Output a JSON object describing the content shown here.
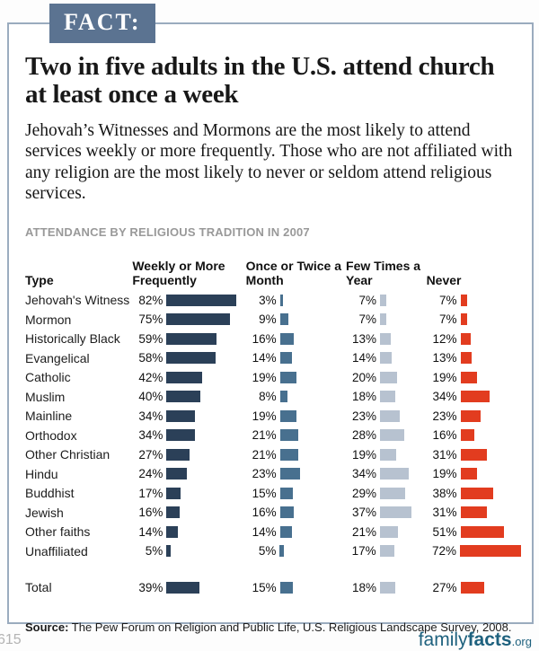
{
  "badge": {
    "label": "FACT:"
  },
  "title": "Two in five adults in the U.S. attend church at least once a week",
  "intro": "Jehovah’s Witnesses and Mormons are the most likely to attend services weekly or more frequently. Those who are not affiliated with any religion are the most likely to never or seldom attend religious services.",
  "kicker": "ATTENDANCE BY RELIGIOUS TRADITION IN 2007",
  "colors": {
    "badge_bg": "#5b7391",
    "box_border": "#9aabbe",
    "bar_weekly": "#2b4058",
    "bar_monthly": "#48708f",
    "bar_fewtimes": "#b7c2d0",
    "bar_never": "#e23c1f",
    "logo": "#1e617e"
  },
  "chart_data": {
    "type": "bar",
    "title": "Attendance by Religious Tradition in 2007",
    "unit": "percent",
    "type_header": "Type",
    "columns": [
      "Weekly or More Frequently",
      "Once or Twice a Month",
      "Few Times a Year",
      "Never"
    ],
    "categories": [
      "Jehovah's Witness",
      "Mormon",
      "Historically Black",
      "Evangelical",
      "Catholic",
      "Muslim",
      "Mainline",
      "Orthodox",
      "Other Christian",
      "Hindu",
      "Buddhist",
      "Jewish",
      "Other faiths",
      "Unaffiliated"
    ],
    "series": [
      {
        "name": "Weekly or More Frequently",
        "values": [
          82,
          75,
          59,
          58,
          42,
          40,
          34,
          34,
          27,
          24,
          17,
          16,
          14,
          5
        ]
      },
      {
        "name": "Once or Twice a Month",
        "values": [
          3,
          9,
          16,
          14,
          19,
          8,
          19,
          21,
          21,
          23,
          15,
          16,
          14,
          5
        ]
      },
      {
        "name": "Few Times a Year",
        "values": [
          7,
          7,
          13,
          14,
          20,
          18,
          23,
          28,
          19,
          34,
          29,
          37,
          21,
          17
        ]
      },
      {
        "name": "Never",
        "values": [
          7,
          7,
          12,
          13,
          19,
          34,
          23,
          16,
          31,
          19,
          38,
          31,
          51,
          72
        ]
      }
    ],
    "total": {
      "label": "Total",
      "values": [
        39,
        15,
        18,
        27
      ]
    },
    "value_suffix": "%",
    "legend_position": "none",
    "grid": false,
    "xlim": [
      0,
      100
    ]
  },
  "source": {
    "label": "Source:",
    "text": "The Pew Forum on Religion and Public Life, U.S. Religious Landscape Survey, 2008."
  },
  "footer": {
    "page_number": "615",
    "logo": {
      "part1": "family",
      "part2": "facts",
      "part3": ".org"
    }
  }
}
